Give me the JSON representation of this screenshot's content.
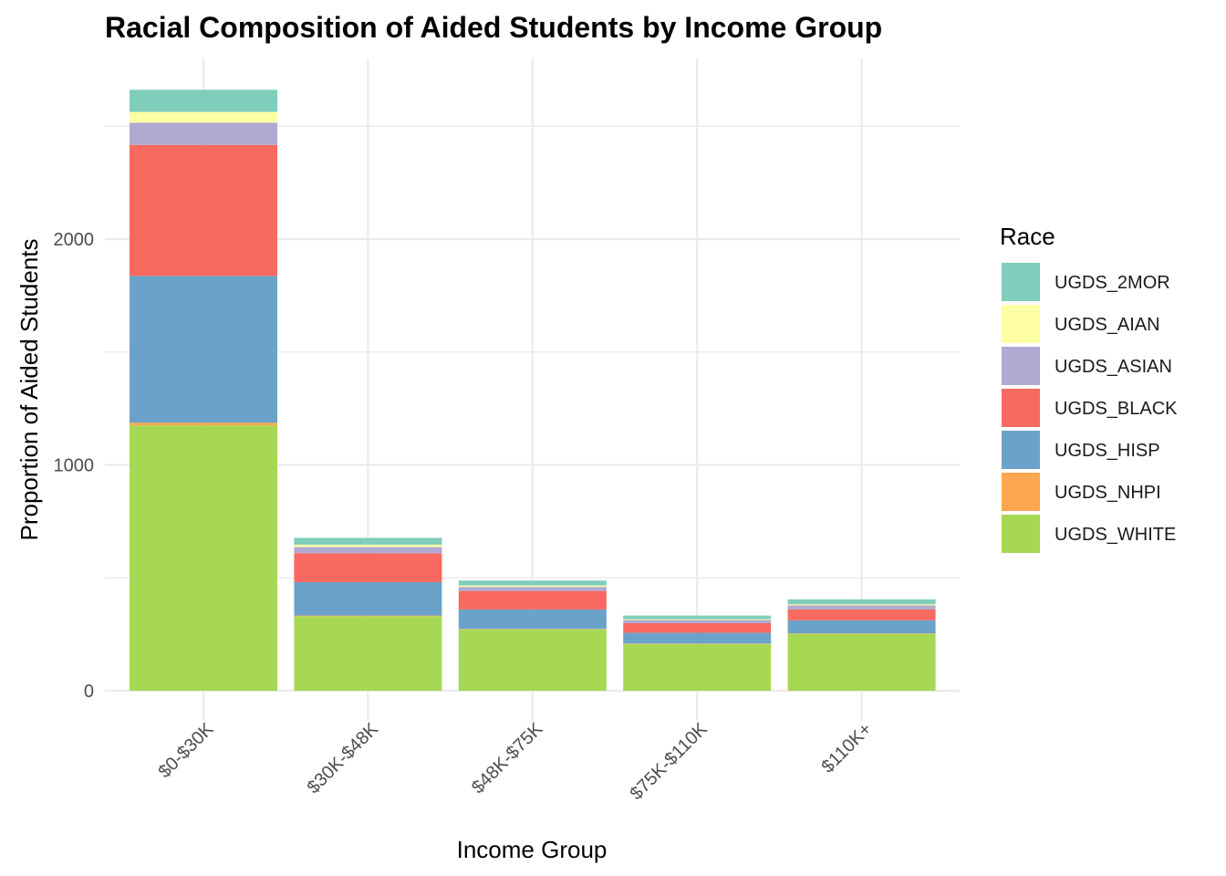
{
  "chart_data": {
    "type": "bar",
    "stacked": true,
    "title": "Racial Composition of Aided Students by Income Group",
    "xlabel": "Income Group",
    "ylabel": "Proportion of Aided Students",
    "ylim": [
      0,
      2700
    ],
    "yticks": [
      0,
      1000,
      2000
    ],
    "grid": true,
    "legend_title": "Race",
    "legend_position": "right",
    "categories": [
      "$0-$30K",
      "$30K-$48K",
      "$48K-$75K",
      "$75K-$110K",
      "$110K+"
    ],
    "series": [
      {
        "name": "UGDS_WHITE",
        "color": "#A6D854",
        "values": [
          1175,
          330,
          272,
          207,
          252
        ]
      },
      {
        "name": "UGDS_NHPI",
        "color": "#FCA650",
        "values": [
          12,
          3,
          2,
          2,
          2
        ]
      },
      {
        "name": "UGDS_HISP",
        "color": "#6BA2C9",
        "values": [
          650,
          148,
          86,
          48,
          58
        ]
      },
      {
        "name": "UGDS_BLACK",
        "color": "#F8695F",
        "values": [
          580,
          128,
          82,
          42,
          48
        ]
      },
      {
        "name": "UGDS_ASIAN",
        "color": "#B0A9D1",
        "values": [
          98,
          28,
          18,
          14,
          18
        ]
      },
      {
        "name": "UGDS_AIAN",
        "color": "#FFFFA6",
        "values": [
          48,
          10,
          6,
          4,
          5
        ]
      },
      {
        "name": "UGDS_2MOR",
        "color": "#7FCDBB",
        "values": [
          98,
          30,
          22,
          16,
          22
        ]
      }
    ],
    "legend_order": [
      "UGDS_2MOR",
      "UGDS_AIAN",
      "UGDS_ASIAN",
      "UGDS_BLACK",
      "UGDS_HISP",
      "UGDS_NHPI",
      "UGDS_WHITE"
    ]
  }
}
